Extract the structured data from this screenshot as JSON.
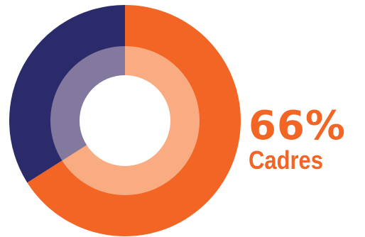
{
  "chart_data": {
    "type": "pie",
    "title": "",
    "slices": [
      {
        "value": 66,
        "color": "#f26524",
        "inner_color": "#f9ac82"
      },
      {
        "value": 34,
        "color": "#2b2a6a",
        "inner_color": "#83799f"
      }
    ],
    "highlight": {
      "value_label": "66%",
      "category_label": "Cadres"
    },
    "hole_color": "#ffffff"
  }
}
